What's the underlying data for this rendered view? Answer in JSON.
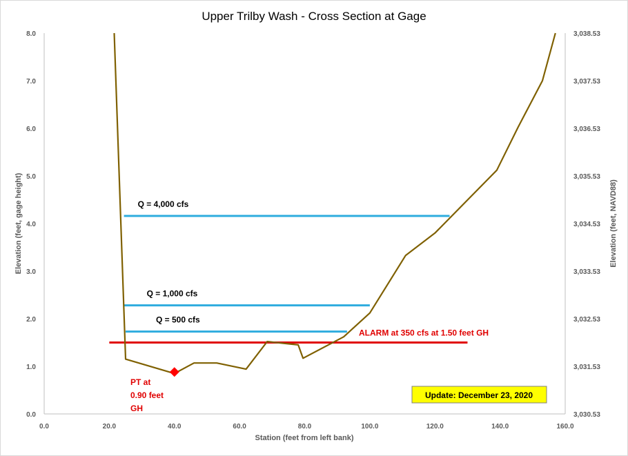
{
  "chart_data": {
    "type": "line",
    "title": "Upper Trilby Wash - Cross Section at Gage",
    "xlabel": "Station (feet from left bank)",
    "ylabel": "Elevation (feet, gage height)",
    "y2label": "Elevation (feet, NAVD88)",
    "xlim": [
      0,
      160
    ],
    "ylim": [
      0,
      8
    ],
    "xticks": [
      "0.0",
      "20.0",
      "40.0",
      "60.0",
      "80.0",
      "100.0",
      "120.0",
      "140.0",
      "160.0"
    ],
    "yticks": [
      "0.0",
      "1.0",
      "2.0",
      "3.0",
      "4.0",
      "5.0",
      "6.0",
      "7.0",
      "8.0"
    ],
    "y2ticks": [
      "3,030.53",
      "3,031.53",
      "3,032.53",
      "3,033.53",
      "3,034.53",
      "3,035.53",
      "3,036.53",
      "3,037.53",
      "3,038.53"
    ],
    "grid": false,
    "series": [
      {
        "color": "#7f6000",
        "points": [
          [
            21.5,
            8.0
          ],
          [
            25.0,
            1.15
          ],
          [
            40.0,
            0.85
          ],
          [
            46.0,
            1.07
          ],
          [
            53.0,
            1.07
          ],
          [
            62.0,
            0.94
          ],
          [
            68.5,
            1.52
          ],
          [
            78.0,
            1.45
          ],
          [
            79.5,
            1.17
          ],
          [
            92.0,
            1.62
          ],
          [
            100.0,
            2.12
          ],
          [
            111.0,
            3.33
          ],
          [
            120.0,
            3.8
          ],
          [
            139.0,
            5.12
          ],
          [
            145.5,
            6.02
          ],
          [
            153.0,
            7.0
          ],
          [
            157.0,
            8.0
          ]
        ]
      }
    ],
    "flow_levels": [
      {
        "label": "Q = 4,000  cfs",
        "y": 4.16,
        "x_start": 24.5,
        "x_end": 124.5,
        "color": "#2eacde"
      },
      {
        "label": "Q = 1,000  cfs",
        "y": 2.28,
        "x_start": 24.5,
        "x_end": 100.0,
        "color": "#2eacde"
      },
      {
        "label": "Q = 500  cfs",
        "y": 1.73,
        "x_start": 25.0,
        "x_end": 93.0,
        "color": "#2eacde"
      }
    ],
    "alarm": {
      "label": "ALARM at 350  cfs at 1.50  feet GH",
      "y": 1.5,
      "x_start": 20.0,
      "x_end": 130.0,
      "color": "#e00000"
    },
    "pt_marker": {
      "x": 40.0,
      "y": 0.88,
      "color": "#ff0000",
      "label_lines": [
        "PT at",
        "0.90  feet",
        "GH"
      ]
    },
    "update_label": "Update: December 23, 2020"
  }
}
